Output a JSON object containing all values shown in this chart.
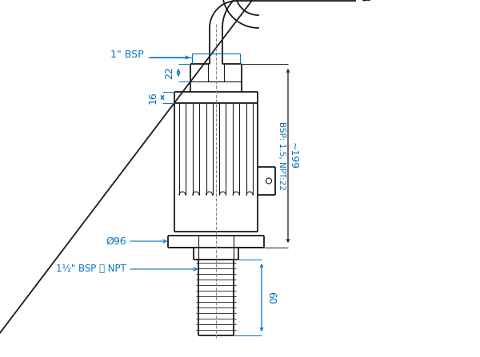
{
  "bg_color": "#ffffff",
  "line_color": "#1a1a1a",
  "dim_color": "#0070c0",
  "figsize": [
    6.0,
    4.47
  ],
  "dpi": 100,
  "labels": {
    "bsp_top": "1\" BSP",
    "dim_22": "22",
    "dim_16": "16",
    "dim_96": "Ø96",
    "bsp_bottom": "1½\" BSP 或 NPT",
    "bsp_right": "BSP: 1.5, NPT:22",
    "dim_199": "~199",
    "dim_60": "60"
  }
}
